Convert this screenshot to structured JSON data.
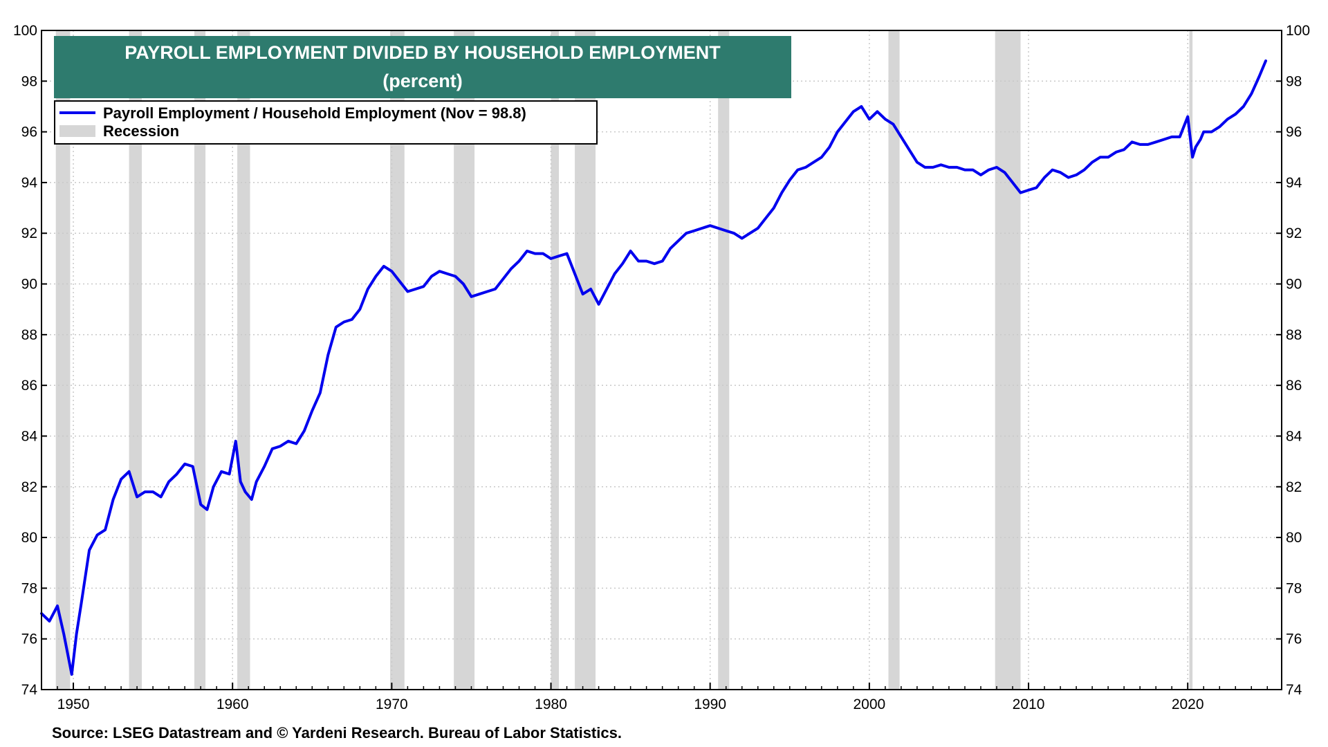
{
  "colors": {
    "series": "#0000ee",
    "recession": "#d6d6d6",
    "title_bg": "#2e7b6e",
    "title_text": "#ffffff",
    "grid": "#c8c8c8"
  },
  "chart_data": {
    "type": "line",
    "title": "PAYROLL EMPLOYMENT DIVIDED BY HOUSEHOLD EMPLOYMENT",
    "subtitle": "(percent)",
    "source": "Source: LSEG Datastream and © Yardeni Research. Bureau of Labor Statistics.",
    "xlim": [
      1948,
      2025.9
    ],
    "ylim": [
      74,
      100
    ],
    "x_ticks": [
      1950,
      1960,
      1970,
      1980,
      1990,
      2000,
      2010,
      2020
    ],
    "y_ticks": [
      74,
      76,
      78,
      80,
      82,
      84,
      86,
      88,
      90,
      92,
      94,
      96,
      98,
      100
    ],
    "grid": true,
    "legend": {
      "placement": "top-left",
      "entries": [
        {
          "label": "Payroll Employment / Household Employment (Nov = 98.8)",
          "kind": "line"
        },
        {
          "label": "Recession",
          "kind": "band"
        }
      ]
    },
    "recessions": [
      [
        1948.9,
        1949.8
      ],
      [
        1953.5,
        1954.3
      ],
      [
        1957.6,
        1958.3
      ],
      [
        1960.3,
        1961.1
      ],
      [
        1969.9,
        1970.8
      ],
      [
        1973.9,
        1975.2
      ],
      [
        1980.0,
        1980.5
      ],
      [
        1981.5,
        1982.8
      ],
      [
        1990.5,
        1991.2
      ],
      [
        2001.2,
        2001.9
      ],
      [
        2007.9,
        2009.5
      ],
      [
        2020.1,
        2020.3
      ]
    ],
    "series": [
      {
        "name": "Payroll Employment / Household Employment (Nov = 98.8)",
        "x": [
          1948.0,
          1948.5,
          1949.0,
          1949.4,
          1949.9,
          1950.2,
          1950.5,
          1951.0,
          1951.5,
          1952.0,
          1952.5,
          1953.0,
          1953.5,
          1954.0,
          1954.5,
          1955.0,
          1955.5,
          1956.0,
          1956.5,
          1957.0,
          1957.5,
          1958.0,
          1958.4,
          1958.8,
          1959.3,
          1959.8,
          1960.2,
          1960.5,
          1960.8,
          1961.2,
          1961.5,
          1962.0,
          1962.5,
          1963.0,
          1963.5,
          1964.0,
          1964.5,
          1965.0,
          1965.5,
          1966.0,
          1966.5,
          1967.0,
          1967.5,
          1968.0,
          1968.5,
          1969.0,
          1969.5,
          1970.0,
          1970.5,
          1971.0,
          1971.5,
          1972.0,
          1972.5,
          1973.0,
          1973.5,
          1974.0,
          1974.5,
          1975.0,
          1975.5,
          1976.0,
          1976.5,
          1977.0,
          1977.5,
          1978.0,
          1978.5,
          1979.0,
          1979.5,
          1980.0,
          1980.5,
          1981.0,
          1981.5,
          1982.0,
          1982.5,
          1983.0,
          1983.5,
          1984.0,
          1984.5,
          1985.0,
          1985.5,
          1986.0,
          1986.5,
          1987.0,
          1987.5,
          1988.0,
          1988.5,
          1989.0,
          1989.5,
          1990.0,
          1990.5,
          1991.0,
          1991.5,
          1992.0,
          1992.5,
          1993.0,
          1993.5,
          1994.0,
          1994.5,
          1995.0,
          1995.5,
          1996.0,
          1996.5,
          1997.0,
          1997.5,
          1998.0,
          1998.5,
          1999.0,
          1999.5,
          2000.0,
          2000.5,
          2001.0,
          2001.5,
          2002.0,
          2002.5,
          2003.0,
          2003.5,
          2004.0,
          2004.5,
          2005.0,
          2005.5,
          2006.0,
          2006.5,
          2007.0,
          2007.5,
          2008.0,
          2008.5,
          2009.0,
          2009.5,
          2010.0,
          2010.5,
          2011.0,
          2011.5,
          2012.0,
          2012.5,
          2013.0,
          2013.5,
          2014.0,
          2014.5,
          2015.0,
          2015.5,
          2016.0,
          2016.5,
          2017.0,
          2017.5,
          2018.0,
          2018.5,
          2019.0,
          2019.5,
          2020.0,
          2020.3,
          2020.5,
          2020.8,
          2021.0,
          2021.5,
          2022.0,
          2022.5,
          2023.0,
          2023.5,
          2024.0,
          2024.5,
          2024.9
        ],
        "y": [
          77.0,
          76.7,
          77.3,
          76.2,
          74.6,
          76.2,
          77.4,
          79.5,
          80.1,
          80.3,
          81.5,
          82.3,
          82.6,
          81.6,
          81.8,
          81.8,
          81.6,
          82.2,
          82.5,
          82.9,
          82.8,
          81.3,
          81.1,
          82.0,
          82.6,
          82.5,
          83.8,
          82.2,
          81.8,
          81.5,
          82.2,
          82.8,
          83.5,
          83.6,
          83.8,
          83.7,
          84.2,
          85.0,
          85.7,
          87.2,
          88.3,
          88.5,
          88.6,
          89.0,
          89.8,
          90.3,
          90.7,
          90.5,
          90.1,
          89.7,
          89.8,
          89.9,
          90.3,
          90.5,
          90.4,
          90.3,
          90.0,
          89.5,
          89.6,
          89.7,
          89.8,
          90.2,
          90.6,
          90.9,
          91.3,
          91.2,
          91.2,
          91.0,
          91.1,
          91.2,
          90.4,
          89.6,
          89.8,
          89.2,
          89.8,
          90.4,
          90.8,
          91.3,
          90.9,
          90.9,
          90.8,
          90.9,
          91.4,
          91.7,
          92.0,
          92.1,
          92.2,
          92.3,
          92.2,
          92.1,
          92.0,
          91.8,
          92.0,
          92.2,
          92.6,
          93.0,
          93.6,
          94.1,
          94.5,
          94.6,
          94.8,
          95.0,
          95.4,
          96.0,
          96.4,
          96.8,
          97.0,
          96.5,
          96.8,
          96.5,
          96.3,
          95.8,
          95.3,
          94.8,
          94.6,
          94.6,
          94.7,
          94.6,
          94.6,
          94.5,
          94.5,
          94.3,
          94.5,
          94.6,
          94.4,
          94.0,
          93.6,
          93.7,
          93.8,
          94.2,
          94.5,
          94.4,
          94.2,
          94.3,
          94.5,
          94.8,
          95.0,
          95.0,
          95.2,
          95.3,
          95.6,
          95.5,
          95.5,
          95.6,
          95.7,
          95.8,
          95.8,
          96.6,
          95.0,
          95.4,
          95.7,
          96.0,
          96.0,
          96.2,
          96.5,
          96.7,
          97.0,
          97.5,
          98.2,
          98.8
        ]
      }
    ]
  }
}
